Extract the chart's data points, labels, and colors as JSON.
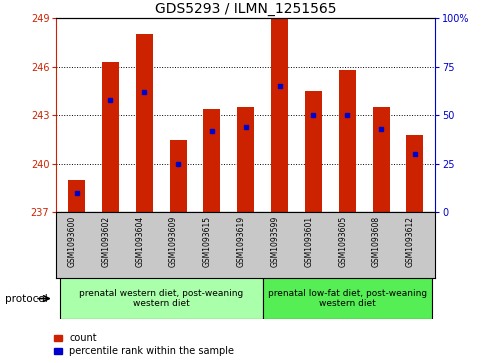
{
  "title": "GDS5293 / ILMN_1251565",
  "samples": [
    "GSM1093600",
    "GSM1093602",
    "GSM1093604",
    "GSM1093609",
    "GSM1093615",
    "GSM1093619",
    "GSM1093599",
    "GSM1093601",
    "GSM1093605",
    "GSM1093608",
    "GSM1093612"
  ],
  "counts": [
    239.0,
    246.3,
    248.0,
    241.5,
    243.4,
    243.5,
    249.2,
    244.5,
    245.8,
    243.5,
    241.8
  ],
  "percentiles": [
    10,
    58,
    62,
    25,
    42,
    44,
    65,
    50,
    50,
    43,
    30
  ],
  "y_min": 237,
  "y_max": 249,
  "y_ticks": [
    237,
    240,
    243,
    246,
    249
  ],
  "right_y_ticks": [
    0,
    25,
    50,
    75,
    100
  ],
  "right_y_labels": [
    "0",
    "25",
    "50",
    "75",
    "100%"
  ],
  "bar_color": "#cc2200",
  "percentile_color": "#0000cc",
  "group1_label": "prenatal western diet, post-weaning\nwestern diet",
  "group2_label": "prenatal low-fat diet, post-weaning\nwestern diet",
  "group1_color": "#aaffaa",
  "group2_color": "#55ee55",
  "n_group1": 6,
  "n_group2": 5,
  "protocol_label": "protocol",
  "legend_count_label": "count",
  "legend_percentile_label": "percentile rank within the sample",
  "background_color": "#ffffff",
  "tick_area_color": "#c8c8c8",
  "title_fontsize": 10,
  "axis_fontsize": 7,
  "label_fontsize": 6.5,
  "legend_fontsize": 7
}
